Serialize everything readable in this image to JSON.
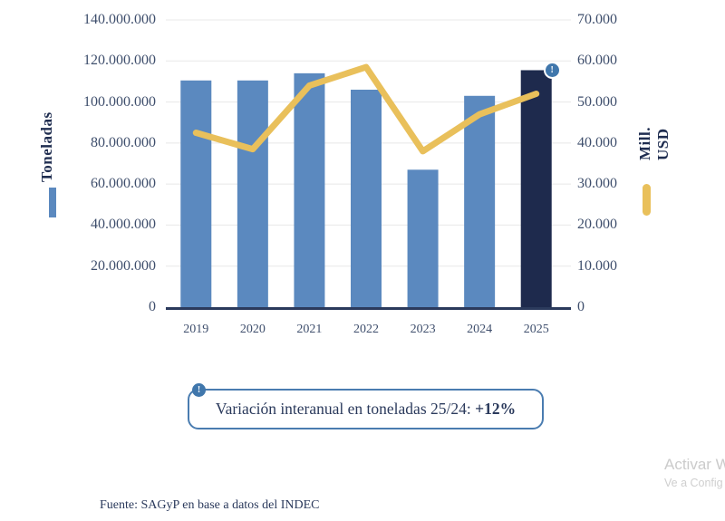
{
  "colors": {
    "bar": "#5B89BF",
    "bar_highlight": "#1E2A4D",
    "line": "#E9C05B",
    "axis_line": "#2B3A5C",
    "grid": "#E8E8E8",
    "tick_text": "#3E4E6C",
    "title_text": "#1F2D50",
    "info_blue": "#4077AC",
    "box_border": "#4A7CB0"
  },
  "icons": {
    "exclamation": "!"
  },
  "annotation": {
    "text": "Variación interanual en toneladas 25/24: ",
    "highlight": "+12%"
  },
  "source_text": "Fuente: SAGyP en base a datos del INDEC",
  "watermark": {
    "line1": "Activar W",
    "line2": "Ve a Config"
  },
  "chart_data": {
    "type": "bar",
    "subtype": "combo-bar-line",
    "categories": [
      "2019",
      "2020",
      "2021",
      "2022",
      "2023",
      "2024",
      "2025"
    ],
    "series": [
      {
        "name": "Toneladas",
        "type": "bar",
        "axis": "left",
        "values": [
          110500000,
          110500000,
          114000000,
          106000000,
          67000000,
          103000000,
          115500000
        ],
        "color": "#5B89BF",
        "highlight_index": 6,
        "highlight_color": "#1E2A4D"
      },
      {
        "name": "Mill. USD",
        "type": "line",
        "axis": "right",
        "values": [
          42500,
          38500,
          54000,
          58500,
          38000,
          47000,
          52000
        ],
        "color": "#E9C05B"
      }
    ],
    "left_axis": {
      "label": "Toneladas",
      "min": 0,
      "max": 140000000,
      "step": 20000000,
      "ticks": [
        "140.000.000",
        "120.000.000",
        "100.000.000",
        "80.000.000",
        "60.000.000",
        "40.000.000",
        "20.000.000",
        "0"
      ]
    },
    "right_axis": {
      "label": "Mill. USD",
      "min": 0,
      "max": 70000,
      "step": 10000,
      "ticks": [
        "70.000",
        "60.000",
        "50.000",
        "40.000",
        "30.000",
        "20.000",
        "10.000",
        "0"
      ]
    },
    "grid": true,
    "legend_position": "outer-sides",
    "annotation_note": "Variación interanual en toneladas 25/24: +12%"
  }
}
